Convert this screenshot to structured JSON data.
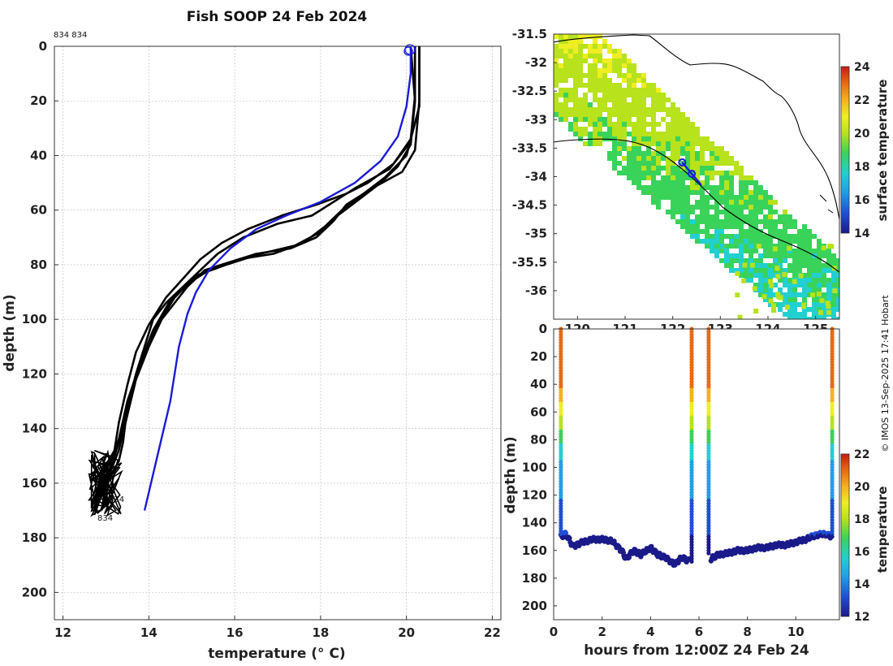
{
  "colors": {
    "profile": "#000000",
    "mean_profile": "#1a1ad6",
    "coast": "#000000",
    "colormap": [
      "#1a1a8a",
      "#1f4fd6",
      "#1fa0e6",
      "#22d0d0",
      "#39d35a",
      "#b7e21c",
      "#eeee22",
      "#f4b21c",
      "#e86a12",
      "#c81a12"
    ]
  },
  "watermark": "© IMOS 13-Sep-2025 17:41 Hobart",
  "chart_data": [
    {
      "id": "profile",
      "type": "line",
      "title": "Fish SOOP 24 Feb 2024",
      "top_label": "834 834",
      "xlabel": "temperature (° C)",
      "ylabel": "depth (m)",
      "xlim": [
        11.8,
        22.2
      ],
      "ylim": [
        210,
        0
      ],
      "xticks": [
        "12",
        "14",
        "16",
        "18",
        "20",
        "22"
      ],
      "yticks": [
        "0",
        "20",
        "40",
        "60",
        "80",
        "100",
        "120",
        "140",
        "160",
        "180",
        "200"
      ],
      "grid": true,
      "series": [
        {
          "name": "profile 1",
          "points": [
            [
              20.2,
              0
            ],
            [
              20.2,
              20
            ],
            [
              20.1,
              35
            ],
            [
              19.6,
              45
            ],
            [
              18.8,
              52
            ],
            [
              18.2,
              58
            ],
            [
              17.8,
              62
            ],
            [
              17.0,
              65
            ],
            [
              16.2,
              70
            ],
            [
              15.6,
              76
            ],
            [
              15.2,
              82
            ],
            [
              14.8,
              88
            ],
            [
              14.4,
              94
            ],
            [
              14.1,
              100
            ],
            [
              13.9,
              110
            ],
            [
              13.7,
              120
            ],
            [
              13.5,
              132
            ],
            [
              13.4,
              145
            ],
            [
              13.3,
              152
            ],
            [
              13.0,
              160
            ],
            [
              12.9,
              170
            ]
          ]
        },
        {
          "name": "profile 2",
          "points": [
            [
              20.3,
              0
            ],
            [
              20.3,
              20
            ],
            [
              20.2,
              38
            ],
            [
              19.9,
              46
            ],
            [
              19.2,
              52
            ],
            [
              18.6,
              58
            ],
            [
              18.3,
              64
            ],
            [
              17.9,
              70
            ],
            [
              17.3,
              74
            ],
            [
              16.5,
              76
            ],
            [
              15.9,
              79
            ],
            [
              15.3,
              82
            ],
            [
              14.9,
              88
            ],
            [
              14.6,
              94
            ],
            [
              14.3,
              100
            ],
            [
              14.0,
              110
            ],
            [
              13.7,
              122
            ],
            [
              13.5,
              135
            ],
            [
              13.3,
              148
            ],
            [
              13.0,
              160
            ],
            [
              12.8,
              168
            ]
          ]
        },
        {
          "name": "profile 3",
          "points": [
            [
              20.1,
              0
            ],
            [
              20.2,
              20
            ],
            [
              20.1,
              36
            ],
            [
              19.8,
              44
            ],
            [
              19.4,
              50
            ],
            [
              18.9,
              56
            ],
            [
              18.4,
              62
            ],
            [
              18.0,
              68
            ],
            [
              17.4,
              73
            ],
            [
              16.6,
              76
            ],
            [
              15.8,
              80
            ],
            [
              15.1,
              84
            ],
            [
              14.6,
              92
            ],
            [
              14.2,
              102
            ],
            [
              13.9,
              114
            ],
            [
              13.6,
              126
            ],
            [
              13.4,
              140
            ],
            [
              13.2,
              150
            ],
            [
              12.9,
              162
            ],
            [
              12.7,
              166
            ]
          ]
        },
        {
          "name": "profile 4",
          "points": [
            [
              20.3,
              0
            ],
            [
              20.3,
              22
            ],
            [
              20.0,
              40
            ],
            [
              19.5,
              48
            ],
            [
              19.0,
              54
            ],
            [
              18.5,
              60
            ],
            [
              18.1,
              66
            ],
            [
              17.6,
              72
            ],
            [
              16.9,
              76
            ],
            [
              16.1,
              78
            ],
            [
              15.5,
              81
            ],
            [
              15.0,
              86
            ],
            [
              14.5,
              93
            ],
            [
              14.1,
              104
            ],
            [
              13.8,
              116
            ],
            [
              13.5,
              130
            ],
            [
              13.3,
              144
            ],
            [
              13.1,
              152
            ],
            [
              12.9,
              158
            ],
            [
              13.0,
              168
            ]
          ]
        },
        {
          "name": "profile 5",
          "points": [
            [
              20.2,
              0
            ],
            [
              20.2,
              18
            ],
            [
              20.1,
              34
            ],
            [
              19.7,
              43
            ],
            [
              19.1,
              50
            ],
            [
              18.6,
              54
            ],
            [
              17.9,
              58
            ],
            [
              17.1,
              62
            ],
            [
              16.3,
              67
            ],
            [
              15.7,
              72
            ],
            [
              15.2,
              78
            ],
            [
              14.8,
              85
            ],
            [
              14.4,
              92
            ],
            [
              14.0,
              102
            ],
            [
              13.7,
              112
            ],
            [
              13.5,
              124
            ],
            [
              13.3,
              138
            ],
            [
              13.2,
              148
            ],
            [
              12.9,
              156
            ],
            [
              12.8,
              164
            ]
          ]
        },
        {
          "name": "mean",
          "points": [
            [
              20.1,
              0
            ],
            [
              20.1,
              10
            ],
            [
              20.0,
              22
            ],
            [
              19.8,
              33
            ],
            [
              19.4,
              42
            ],
            [
              18.8,
              50
            ],
            [
              18.0,
              57
            ],
            [
              17.2,
              62
            ],
            [
              16.5,
              67
            ],
            [
              15.9,
              74
            ],
            [
              15.4,
              82
            ],
            [
              15.1,
              90
            ],
            [
              14.9,
              98
            ],
            [
              14.7,
              110
            ],
            [
              14.5,
              130
            ],
            [
              14.2,
              150
            ],
            [
              13.9,
              170
            ]
          ]
        }
      ],
      "annotations": [
        "834",
        "834"
      ]
    },
    {
      "id": "map",
      "type": "heatmap",
      "xlim": [
        119.5,
        125.5
      ],
      "ylim": [
        -36.5,
        -31.5
      ],
      "xticks": [
        "120",
        "121",
        "122",
        "123",
        "124",
        "125"
      ],
      "yticks": [
        "-31.5",
        "-32",
        "-32.5",
        "-33",
        "-33.5",
        "-34",
        "-34.5",
        "-35",
        "-35.5",
        "-36"
      ],
      "colorbar_label": "surface temperature",
      "colorbar_range": [
        14,
        24
      ],
      "colorbar_ticks": [
        "14",
        "16",
        "18",
        "20",
        "22",
        "24"
      ],
      "track": [
        [
          122.2,
          -33.75
        ],
        [
          122.4,
          -33.95
        ],
        [
          122.6,
          -34.15
        ]
      ]
    },
    {
      "id": "timeseries",
      "type": "scatter",
      "xlabel": "hours from 12:00Z 24 Feb 24",
      "ylabel": "depth (m)",
      "xlim": [
        0,
        11.8
      ],
      "ylim": [
        210,
        0
      ],
      "xticks": [
        "0",
        "2",
        "4",
        "6",
        "8",
        "10"
      ],
      "yticks": [
        "0",
        "20",
        "40",
        "60",
        "80",
        "100",
        "120",
        "140",
        "160",
        "180",
        "200"
      ],
      "colorbar_label": "temperature",
      "colorbar_range": [
        12,
        22
      ],
      "colorbar_ticks": [
        "12",
        "14",
        "16",
        "18",
        "20",
        "22"
      ],
      "bottom_track": [
        [
          0.3,
          150
        ],
        [
          0.5,
          148
        ],
        [
          0.8,
          157
        ],
        [
          1.2,
          154
        ],
        [
          1.6,
          152
        ],
        [
          2.0,
          152
        ],
        [
          2.4,
          153
        ],
        [
          2.8,
          160
        ],
        [
          3.0,
          166
        ],
        [
          3.3,
          160
        ],
        [
          3.6,
          163
        ],
        [
          4.0,
          158
        ],
        [
          4.3,
          163
        ],
        [
          4.6,
          165
        ],
        [
          5.0,
          170
        ],
        [
          5.3,
          165
        ],
        [
          5.6,
          168
        ],
        [
          6.5,
          166
        ],
        [
          6.8,
          163
        ],
        [
          7.2,
          162
        ],
        [
          7.6,
          160
        ],
        [
          8.0,
          160
        ],
        [
          8.4,
          158
        ],
        [
          8.8,
          158
        ],
        [
          9.2,
          156
        ],
        [
          9.6,
          156
        ],
        [
          10.0,
          154
        ],
        [
          10.4,
          152
        ],
        [
          10.8,
          149
        ],
        [
          11.2,
          148
        ],
        [
          11.5,
          150
        ]
      ],
      "casts": [
        0.3,
        5.7,
        6.4,
        11.5
      ]
    }
  ]
}
